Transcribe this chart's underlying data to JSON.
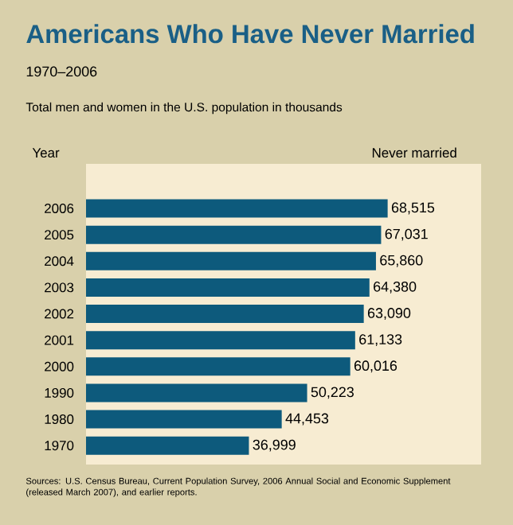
{
  "chart_data": {
    "type": "bar",
    "orientation": "horizontal",
    "title": "Americans Who Have Never Married",
    "subtitle": "1970–2006",
    "annotations": [
      "Total men and women in the U.S. population in thousands",
      "Sources: U.S. Census Bureau, Current Population Survey, 2006 Annual Social and Economic Supplement (released March 2007), and earlier reports."
    ],
    "ylabel": "Year",
    "xlabel": "Never married",
    "categories": [
      "2006",
      "2005",
      "2004",
      "2003",
      "2002",
      "2001",
      "2000",
      "1990",
      "1980",
      "1970"
    ],
    "values": [
      68515,
      67031,
      65860,
      64380,
      63090,
      61133,
      60016,
      50223,
      44453,
      36999
    ],
    "value_labels": [
      "68,515",
      "67,031",
      "65,860",
      "64,380",
      "63,090",
      "61,133",
      "60,016",
      "50,223",
      "44,453",
      "36,999"
    ],
    "color": "#0d5a7c"
  }
}
